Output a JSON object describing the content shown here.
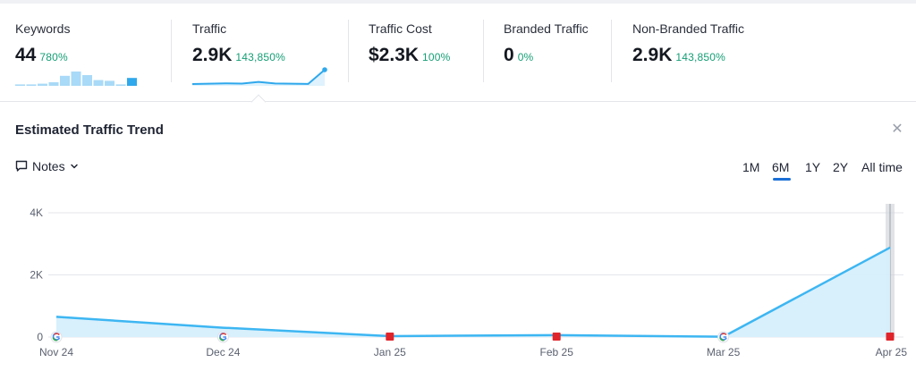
{
  "metrics": [
    {
      "label": "Keywords",
      "value": "44",
      "change": "780%"
    },
    {
      "label": "Traffic",
      "value": "2.9K",
      "change": "143,850%"
    },
    {
      "label": "Traffic Cost",
      "value": "$2.3K",
      "change": "100%"
    },
    {
      "label": "Branded Traffic",
      "value": "0",
      "change": "0%"
    },
    {
      "label": "Non-Branded Traffic",
      "value": "2.9K",
      "change": "143,850%"
    }
  ],
  "panel": {
    "title": "Estimated Traffic Trend",
    "notes_label": "Notes",
    "close_icon": "close-icon",
    "ranges": [
      "1M",
      "6M",
      "1Y",
      "2Y",
      "All time"
    ],
    "active_range": "6M"
  },
  "colors": {
    "line": "#3db6f2",
    "area": "#d6effc",
    "accent": "#1a6fd6",
    "positive": "#149e74",
    "marker_red": "#e0242b"
  },
  "chart_data": {
    "type": "area",
    "title": "Estimated Traffic Trend",
    "xlabel": "",
    "ylabel": "",
    "ylim": [
      0,
      4000
    ],
    "yticks": [
      "0",
      "2K",
      "4K"
    ],
    "categories": [
      "Nov 24",
      "Dec 24",
      "Jan 25",
      "Feb 25",
      "Mar 25",
      "Apr 25"
    ],
    "series": [
      {
        "values": [
          650,
          300,
          30,
          60,
          10,
          2880
        ]
      }
    ],
    "markers": [
      {
        "category": "Nov 24",
        "kind": "google-icon"
      },
      {
        "category": "Dec 24",
        "kind": "google-icon"
      },
      {
        "category": "Jan 25",
        "kind": "flag-icon"
      },
      {
        "category": "Feb 25",
        "kind": "flag-icon"
      },
      {
        "category": "Mar 25",
        "kind": "google-icon"
      },
      {
        "category": "Apr 25",
        "kind": "flag-icon"
      }
    ],
    "grid": true
  },
  "sparklines": {
    "keywords": [
      0.1,
      0.1,
      0.15,
      0.25,
      0.7,
      1.0,
      0.75,
      0.4,
      0.35,
      0.1,
      0.55
    ],
    "traffic": [
      0.0,
      0.02,
      0.05,
      0.03,
      0.15,
      0.04,
      0.02,
      0.01,
      1.0
    ]
  }
}
